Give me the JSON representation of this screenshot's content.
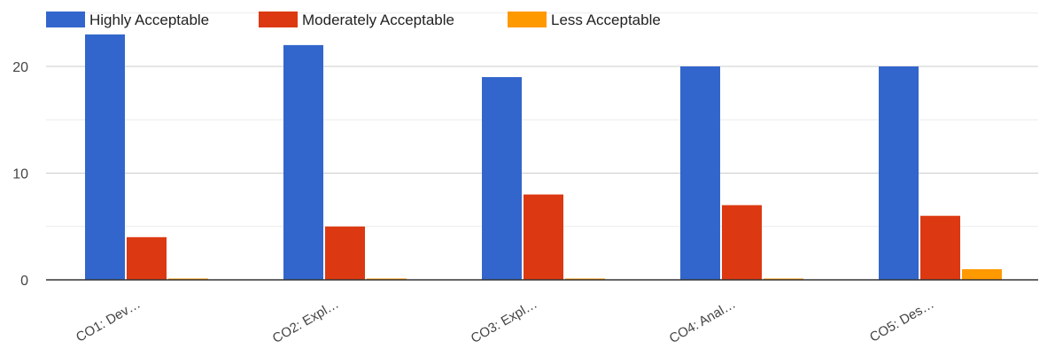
{
  "chart_data": {
    "type": "bar",
    "title": "",
    "xlabel": "",
    "ylabel": "",
    "categories": [
      "CO1: Dev…",
      "CO2: Expl…",
      "CO3: Expl…",
      "CO4: Anal…",
      "CO5: Des…"
    ],
    "series": [
      {
        "name": "Highly Acceptable",
        "color": "#3366cc",
        "values": [
          23,
          22,
          19,
          20,
          20
        ]
      },
      {
        "name": "Moderately Acceptable",
        "color": "#dc3912",
        "values": [
          4,
          5,
          8,
          7,
          6
        ]
      },
      {
        "name": "Less Acceptable",
        "color": "#ff9900",
        "values": [
          0,
          0,
          0,
          0,
          1
        ]
      }
    ],
    "ylim": [
      0,
      25
    ],
    "yticks": [
      0,
      10,
      20
    ],
    "grid": true,
    "legend_position": "top-left",
    "tick_color": "#444444",
    "grid_color": "#e6e6e6",
    "axis_color": "#333333"
  }
}
